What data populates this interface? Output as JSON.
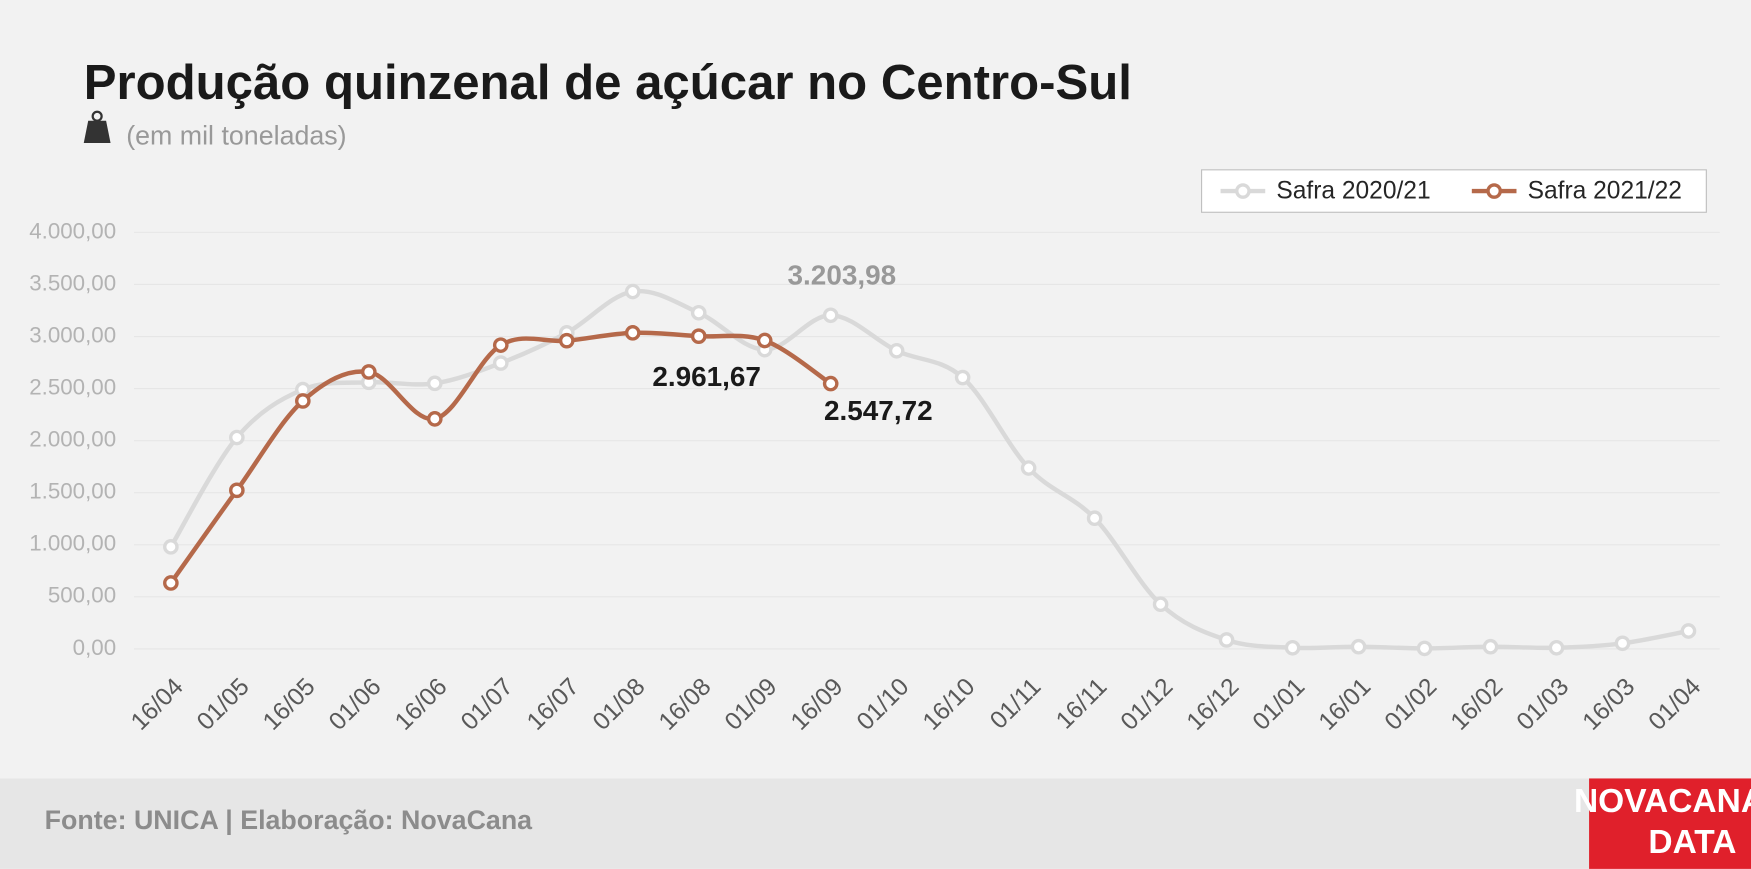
{
  "chart_data": {
    "type": "line",
    "title": "Produção quinzenal de açúcar no Centro-Sul",
    "subtitle": "(em mil toneladas)",
    "source": "Fonte: UNICA | Elaboração: NovaCana",
    "logo": [
      "NOVACANA",
      "DATA"
    ],
    "categories": [
      "16/04",
      "01/05",
      "16/05",
      "01/06",
      "16/06",
      "01/07",
      "16/07",
      "01/08",
      "16/08",
      "01/09",
      "16/09",
      "01/10",
      "16/10",
      "01/11",
      "16/11",
      "01/12",
      "16/12",
      "01/01",
      "16/01",
      "01/02",
      "16/02",
      "01/03",
      "16/03",
      "01/04"
    ],
    "series": [
      {
        "name": "Safra 2020/21",
        "color": "#d9d9d9",
        "values": [
          980,
          2030,
          2490,
          2560,
          2550,
          2745,
          3035,
          3432,
          3228,
          2874,
          3203.98,
          2863,
          2606,
          1737,
          1255,
          429,
          86,
          11,
          21,
          5,
          21,
          11,
          54,
          172
        ],
        "value_labels": [
          null,
          null,
          null,
          null,
          null,
          null,
          null,
          null,
          null,
          null,
          "3.203,98",
          null,
          null,
          null,
          null,
          null,
          null,
          null,
          null,
          null,
          null,
          null,
          null,
          null
        ]
      },
      {
        "name": "Safra 2021/22",
        "color": "#b5694a",
        "values": [
          633,
          1523,
          2381,
          2660,
          2209,
          2917,
          2960,
          3035,
          3003,
          2961.67,
          2547.72,
          null,
          null,
          null,
          null,
          null,
          null,
          null,
          null,
          null,
          null,
          null,
          null,
          null
        ],
        "value_labels": [
          null,
          null,
          null,
          null,
          null,
          null,
          null,
          null,
          null,
          "2.961,67",
          "2.547,72",
          null,
          null,
          null,
          null,
          null,
          null,
          null,
          null,
          null,
          null,
          null,
          null,
          null
        ]
      }
    ],
    "ylim": [
      0,
      4000
    ],
    "yticks": [
      {
        "value": 0,
        "label": "0,00"
      },
      {
        "value": 500,
        "label": "500,00"
      },
      {
        "value": 1000,
        "label": "1.000,00"
      },
      {
        "value": 1500,
        "label": "1.500,00"
      },
      {
        "value": 2000,
        "label": "2.000,00"
      },
      {
        "value": 2500,
        "label": "2.500,00"
      },
      {
        "value": 3000,
        "label": "3.000,00"
      },
      {
        "value": 3500,
        "label": "3.500,00"
      },
      {
        "value": 4000,
        "label": "4.000,00"
      }
    ],
    "grid": true,
    "legend": "upper right"
  }
}
